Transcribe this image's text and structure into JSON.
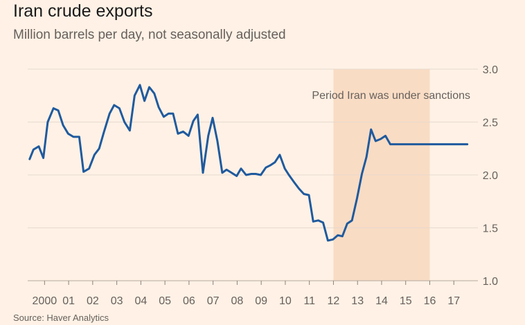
{
  "header": {
    "title": "Iran crude exports",
    "subtitle": "Million barrels per day, not seasonally adjusted"
  },
  "footer": {
    "source": "Source: Haver Analytics"
  },
  "colors": {
    "background": "#FFF1E5",
    "line": "#1F5A9E",
    "shade": "#F9DCC4",
    "grid": "#E6D9CE",
    "text": "#66605C"
  },
  "chart_data": {
    "type": "line",
    "title": "Iran crude exports",
    "subtitle": "Million barrels per day, not seasonally adjusted",
    "xlabel": "",
    "ylabel": "",
    "xlim": [
      1999.3,
      2018.0
    ],
    "ylim": [
      1.0,
      3.0
    ],
    "yticks": [
      1.0,
      1.5,
      2.0,
      2.5,
      3.0
    ],
    "ytick_labels": [
      "1.0",
      "1.5",
      "2.0",
      "2.5",
      "3.0"
    ],
    "xticks": [
      2000,
      2001,
      2002,
      2003,
      2004,
      2005,
      2006,
      2007,
      2008,
      2009,
      2010,
      2011,
      2012,
      2013,
      2014,
      2015,
      2016,
      2017
    ],
    "xtick_labels": [
      "2000",
      "01",
      "02",
      "03",
      "04",
      "05",
      "06",
      "07",
      "08",
      "09",
      "10",
      "11",
      "12",
      "13",
      "14",
      "15",
      "16",
      "17"
    ],
    "grid": true,
    "legend": "none",
    "shaded_region": {
      "x": [
        2012.0,
        2016.0
      ],
      "label": "Period Iran was under sanctions"
    },
    "series": [
      {
        "x": [
          1999.38,
          1999.54,
          1999.76,
          1999.95,
          2000.13,
          2000.37,
          2000.57,
          2000.77,
          2000.98,
          2001.2,
          2001.44,
          2001.62,
          2001.85,
          2002.07,
          2002.27,
          2002.46,
          2002.7,
          2002.89,
          2003.11,
          2003.32,
          2003.54,
          2003.74,
          2003.96,
          2004.15,
          2004.35,
          2004.56,
          2004.74,
          2004.95,
          2005.15,
          2005.34,
          2005.54,
          2005.76,
          2005.98,
          2006.18,
          2006.36,
          2006.58,
          2006.8,
          2006.98,
          2007.18,
          2007.38,
          2007.56,
          2007.77,
          2007.98,
          2008.16,
          2008.37,
          2008.59,
          2008.77,
          2008.98,
          2009.19,
          2009.37,
          2009.57,
          2009.77,
          2009.98,
          2010.15,
          2010.37,
          2010.57,
          2010.77,
          2010.98,
          2011.16,
          2011.37,
          2011.57,
          2011.77,
          2011.98,
          2012.18,
          2012.37,
          2012.57,
          2012.77,
          2012.98,
          2013.18,
          2013.37,
          2013.56,
          2013.75,
          2013.96,
          2014.16,
          2014.36,
          2014.56,
          2014.76,
          2014.96,
          2015.16,
          2015.37,
          2015.57,
          2015.76,
          2015.97,
          2016.17,
          2016.37,
          2016.56,
          2016.76,
          2016.98,
          2017.17,
          2017.36,
          2017.56
        ],
        "y": [
          2.15,
          2.24,
          2.27,
          2.16,
          2.5,
          2.63,
          2.61,
          2.47,
          2.39,
          2.36,
          2.36,
          2.03,
          2.06,
          2.19,
          2.25,
          2.4,
          2.58,
          2.66,
          2.63,
          2.5,
          2.42,
          2.75,
          2.85,
          2.7,
          2.83,
          2.77,
          2.64,
          2.55,
          2.58,
          2.58,
          2.39,
          2.41,
          2.37,
          2.51,
          2.57,
          2.02,
          2.37,
          2.54,
          2.32,
          2.02,
          2.05,
          2.02,
          1.99,
          2.06,
          2.0,
          2.01,
          2.01,
          2.0,
          2.07,
          2.09,
          2.12,
          2.19,
          2.06,
          2.0,
          1.93,
          1.87,
          1.82,
          1.81,
          1.56,
          1.57,
          1.55,
          1.38,
          1.39,
          1.43,
          1.42,
          1.54,
          1.57,
          1.78,
          2.01,
          2.17,
          2.43,
          2.32,
          2.34,
          2.37,
          2.29,
          2.29,
          2.29,
          2.29,
          2.29,
          2.29,
          2.29,
          2.29,
          2.29,
          2.29,
          2.29,
          2.29,
          2.29,
          2.29,
          2.29,
          2.29,
          2.29
        ]
      }
    ]
  }
}
